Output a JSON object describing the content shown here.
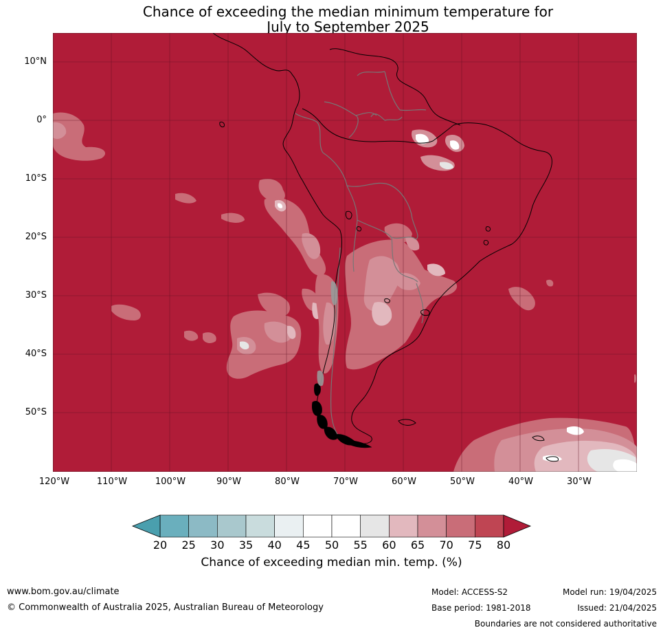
{
  "title": {
    "line1": "Chance of exceeding the median minimum temperature for",
    "line2": "July to September 2025"
  },
  "axes": {
    "lat_labels": [
      "10°N",
      "0°",
      "10°S",
      "20°S",
      "30°S",
      "40°S",
      "50°S"
    ],
    "lon_labels": [
      "120°W",
      "110°W",
      "100°W",
      "90°W",
      "80°W",
      "70°W",
      "60°W",
      "50°W",
      "40°W",
      "30°W"
    ]
  },
  "colorbar": {
    "ticks": [
      "20",
      "25",
      "30",
      "35",
      "40",
      "45",
      "50",
      "55",
      "60",
      "65",
      "70",
      "75",
      "80"
    ],
    "colors": [
      "#4a9fae",
      "#6aafbd",
      "#8cbac5",
      "#a9c8cd",
      "#c9dcdd",
      "#eaf0f2",
      "#ffffff",
      "#ffffff",
      "#e6e6e6",
      "#e2b8be",
      "#d38f98",
      "#c96d78",
      "#bf4553"
    ],
    "under_color": "#4a9fae",
    "over_color": "#b01c38",
    "label": "Chance of exceeding median min. temp. (%)"
  },
  "map": {
    "ocean_color": "#b01c38",
    "grid_color": "#5a1020",
    "coast_color": "#000000",
    "border_color": "#777777"
  },
  "footer": {
    "website": "www.bom.gov.au/climate",
    "copyright": "© Commonwealth of Australia 2025, Australian Bureau of Meteorology",
    "model": "Model: ACCESS-S2",
    "base_period": "Base period: 1981-2018",
    "model_run": "Model run: 19/04/2025",
    "issued": "Issued: 21/04/2025",
    "disclaimer": "Boundaries are not considered authoritative"
  }
}
